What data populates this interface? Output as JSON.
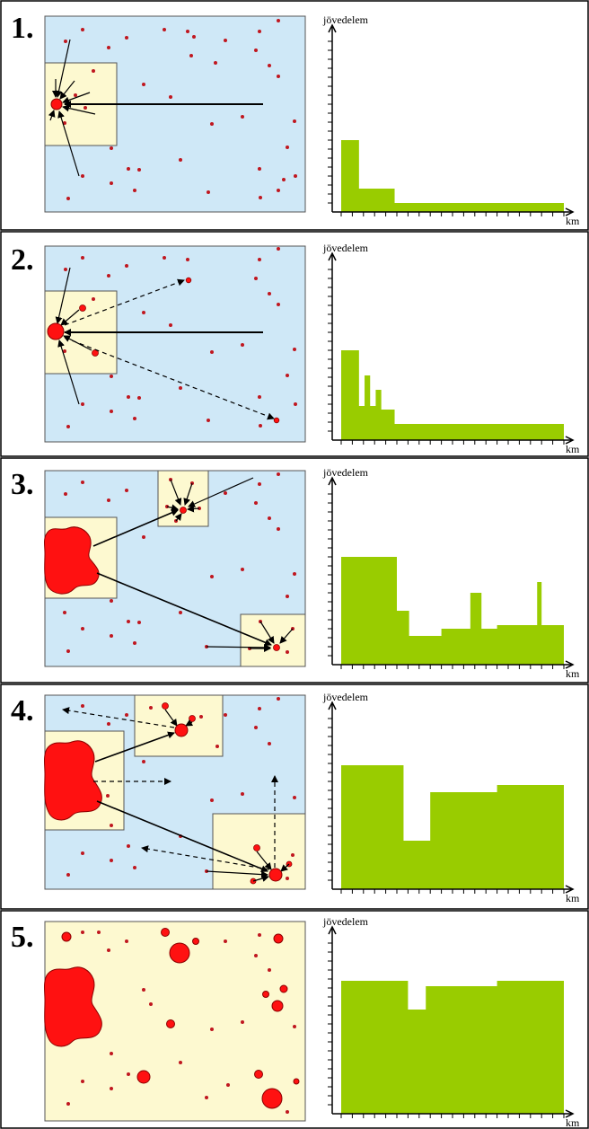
{
  "colors": {
    "map_fill": "#cfe8f7",
    "zone_fill": "#fdf9d0",
    "dot": "#c0171f",
    "city": "#ff1111",
    "city_stroke": "#8b0000",
    "bar": "#99cc00",
    "border": "#555555",
    "arrow": "#000000"
  },
  "axis": {
    "ylabel": "jövedelem",
    "xlabel": "km"
  },
  "panels": [
    {
      "label": "1.",
      "map_background": "blue",
      "chart_data": {
        "type": "step-area",
        "x_range": [
          0,
          10
        ],
        "y_range": [
          0,
          10
        ],
        "steps": [
          [
            0,
            4.0
          ],
          [
            0.8,
            1.3
          ],
          [
            2.4,
            0.5
          ],
          [
            10,
            0
          ]
        ]
      }
    },
    {
      "label": "2.",
      "map_background": "blue",
      "chart_data": {
        "type": "step-area",
        "x_range": [
          0,
          10
        ],
        "y_range": [
          0,
          10
        ],
        "steps": [
          [
            0,
            5.0
          ],
          [
            0.8,
            1.9
          ],
          [
            1.05,
            3.6
          ],
          [
            1.3,
            1.9
          ],
          [
            1.55,
            2.8
          ],
          [
            1.8,
            1.7
          ],
          [
            2.4,
            0.9
          ],
          [
            10,
            0
          ]
        ]
      }
    },
    {
      "label": "3.",
      "map_background": "blue",
      "chart_data": {
        "type": "step-area",
        "x_range": [
          0,
          10
        ],
        "y_range": [
          0,
          10
        ],
        "steps": [
          [
            0,
            6.0
          ],
          [
            2.5,
            3.0
          ],
          [
            3.05,
            1.6
          ],
          [
            4.5,
            2.0
          ],
          [
            5.8,
            4.0
          ],
          [
            6.3,
            2.0
          ],
          [
            7.0,
            2.2
          ],
          [
            8.8,
            4.6
          ],
          [
            9.0,
            2.2
          ],
          [
            10,
            0
          ]
        ]
      }
    },
    {
      "label": "4.",
      "map_background": "blue",
      "chart_data": {
        "type": "step-area",
        "x_range": [
          0,
          10
        ],
        "y_range": [
          0,
          10
        ],
        "steps": [
          [
            0,
            6.9
          ],
          [
            2.8,
            2.7
          ],
          [
            4.0,
            5.4
          ],
          [
            7.0,
            5.8
          ],
          [
            10,
            0
          ]
        ]
      }
    },
    {
      "label": "5.",
      "map_background": "yellow",
      "chart_data": {
        "type": "step-area",
        "x_range": [
          0,
          10
        ],
        "y_range": [
          0,
          10
        ],
        "steps": [
          [
            0,
            7.4
          ],
          [
            3.0,
            5.8
          ],
          [
            3.8,
            7.1
          ],
          [
            7.0,
            7.4
          ],
          [
            10,
            0
          ]
        ]
      }
    }
  ]
}
